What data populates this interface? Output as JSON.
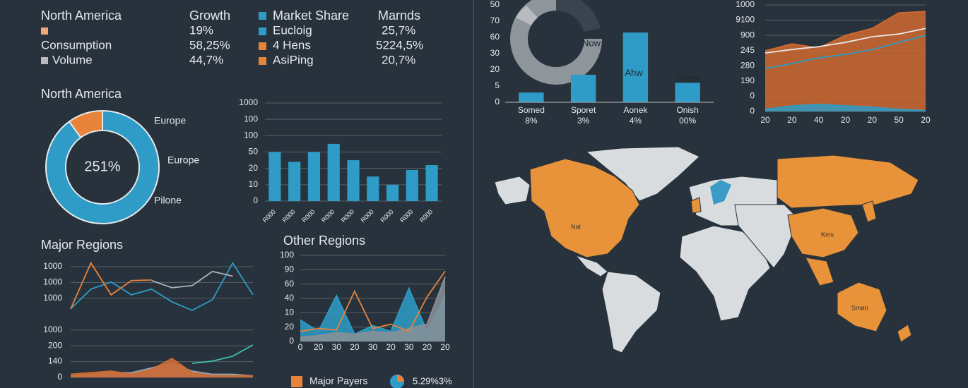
{
  "summary": {
    "header": [
      "North America",
      "Growth",
      "Market Share",
      "Marnds"
    ],
    "rows": [
      {
        "value": "19%",
        "item": "Eucloig",
        "share": "25,7%"
      },
      {
        "label": "Consumption",
        "value": "58,25%",
        "item": "4 Hens",
        "share": "5224,5%"
      },
      {
        "label": "Volume",
        "value": "44,7%",
        "item": "AsiPing",
        "share": "20,7%"
      }
    ]
  },
  "map": {
    "labels": [
      "Nat",
      "Kms",
      "Sman"
    ]
  },
  "chart_data": [
    {
      "type": "pie",
      "title": "North America",
      "categories": [
        null,
        null
      ],
      "values": [
        90,
        10
      ],
      "colors": [
        "#2e9cc6",
        "#e8843a"
      ],
      "center_label": "251%",
      "annotations": [
        "Europe",
        "Europe",
        "Pilone"
      ]
    },
    {
      "type": "bar",
      "categories": [
        "R000",
        "R000",
        "R000",
        "R000",
        "R000",
        "R000",
        "R000",
        "R000",
        "R000"
      ],
      "values": [
        3.0,
        2.4,
        3.0,
        3.5,
        2.5,
        1.5,
        1.0,
        1.9,
        2.2
      ],
      "color": "#2e9cc6",
      "ylim": [
        0,
        6
      ],
      "yticks": [
        0,
        {
          "value": 1,
          "label": "10"
        },
        {
          "value": 2,
          "label": "20"
        },
        {
          "value": 3,
          "label": "50"
        },
        {
          "value": 4,
          "label": "100"
        },
        {
          "value": 5,
          "label": "100"
        },
        {
          "value": 6,
          "label": "1000"
        }
      ],
      "grid": true
    },
    {
      "type": "bar",
      "categories": [
        "Somed",
        "Sporet",
        "Aonek",
        "Onish"
      ],
      "sublabels": [
        "8%",
        "3%",
        "4%",
        "00%"
      ],
      "values": [
        0.6,
        1.7,
        4.3,
        1.2
      ],
      "color": "#2e9cc6",
      "annotations": [
        "Now",
        "Ahw",
        "Pitten"
      ],
      "ylim": [
        0,
        6
      ],
      "yticks": [
        0,
        {
          "value": 1,
          "label": "5"
        },
        {
          "value": 2,
          "label": "20"
        },
        {
          "value": 3,
          "label": "30"
        },
        {
          "value": 4,
          "label": "60"
        },
        {
          "value": 5,
          "label": "70"
        },
        {
          "value": 6,
          "label": "50"
        }
      ],
      "grid": false
    },
    {
      "type": "line",
      "categories": [
        "20",
        "20",
        "40",
        "20",
        "20",
        "50",
        "20"
      ],
      "ylim": [
        0,
        7
      ],
      "yticks": [
        0,
        {
          "value": 1,
          "label": "0"
        },
        {
          "value": 2,
          "label": "190"
        },
        {
          "value": 3,
          "label": "280"
        },
        {
          "value": 4,
          "label": "245"
        },
        {
          "value": 5,
          "label": "900"
        },
        {
          "value": 6,
          "label": "9100"
        },
        {
          "value": 7,
          "label": "1000"
        }
      ],
      "grid": true,
      "series": [
        {
          "color": "#d0692f",
          "area": true,
          "values": [
            3.98,
            4.44,
            4.17,
            5.0,
            5.46,
            6.48,
            6.57
          ]
        },
        {
          "color": "#e8e8e8",
          "values": [
            3.84,
            4.07,
            4.26,
            4.54,
            4.91,
            5.09,
            5.46
          ]
        },
        {
          "color": "#2e9cc6",
          "values": [
            2.82,
            3.15,
            3.52,
            3.75,
            4.07,
            4.54,
            5.0
          ]
        },
        {
          "color": "#2e9cc6",
          "area": true,
          "values": [
            0.14,
            0.37,
            0.46,
            0.37,
            0.28,
            0.14,
            0.05
          ]
        }
      ]
    },
    {
      "type": "line",
      "title": "Major Regions",
      "categories": [
        null,
        null,
        null,
        null,
        null,
        null,
        null,
        null,
        null,
        null
      ],
      "ylim": [
        0,
        7
      ],
      "yticks": [
        0,
        {
          "value": 1,
          "label": "140"
        },
        {
          "value": 2,
          "label": "200"
        },
        {
          "value": 3,
          "label": "1000"
        },
        {
          "value": 5,
          "label": "1000"
        },
        {
          "value": 6,
          "label": "1000"
        },
        {
          "value": 7,
          "label": "1000"
        }
      ],
      "grid": true,
      "series": [
        {
          "color": "#9aa1a8",
          "area": true,
          "values": [
            0.1,
            0.2,
            0.3,
            0.3,
            0.6,
            0.9,
            0.4,
            0.2,
            0.2,
            0.1
          ]
        },
        {
          "color": "#d0692f",
          "area": true,
          "values": [
            0.2,
            0.3,
            0.4,
            0.2,
            0.5,
            1.2,
            0.3,
            0.1,
            0.1,
            0.1
          ]
        },
        {
          "color": "#2e9cc6",
          "values": [
            4.33,
            5.58,
            6.03,
            5.22,
            5.58,
            4.78,
            4.24,
            4.91,
            7.23,
            5.22
          ]
        },
        {
          "color": "#e8843a",
          "values": [
            4.33,
            7.23,
            5.22,
            6.12,
            6.16,
            null,
            null,
            null,
            null,
            null
          ]
        },
        {
          "color": "#aab0b6",
          "values": [
            null,
            null,
            null,
            null,
            6.12,
            5.67,
            5.8,
            6.7,
            6.4,
            null
          ]
        },
        {
          "color": "#3fc1a8",
          "values": [
            null,
            null,
            null,
            null,
            null,
            null,
            0.89,
            1.03,
            1.34,
            2.05
          ]
        }
      ]
    },
    {
      "type": "line",
      "title": "Other Regions",
      "categories": [
        "0",
        "20",
        "30",
        "20",
        "30",
        "20",
        "30",
        "20",
        "20"
      ],
      "ylim": [
        0,
        6
      ],
      "yticks": [
        0,
        {
          "value": 1,
          "label": "20"
        },
        {
          "value": 2,
          "label": "10"
        },
        {
          "value": 3,
          "label": "40"
        },
        {
          "value": 4,
          "label": "60"
        },
        {
          "value": 5,
          "label": "90"
        },
        {
          "value": 6,
          "label": "100"
        }
      ],
      "grid": true,
      "legend_note": "5.29%3%",
      "series": [
        {
          "color": "#2e9cc6",
          "area": true,
          "values": [
            1.5,
            0.7,
            3.2,
            0.5,
            1.1,
            0.7,
            3.7,
            0.7,
            3.2
          ]
        },
        {
          "color": "#8a9096",
          "area": true,
          "values": [
            0.3,
            0.4,
            0.6,
            0.5,
            0.7,
            0.6,
            0.9,
            1.2,
            4.5
          ]
        },
        {
          "name": "Major Payers",
          "color": "#e8843a",
          "values": [
            0.7,
            0.9,
            0.8,
            3.5,
            0.9,
            1.2,
            0.7,
            3.1,
            4.9
          ]
        }
      ]
    }
  ]
}
